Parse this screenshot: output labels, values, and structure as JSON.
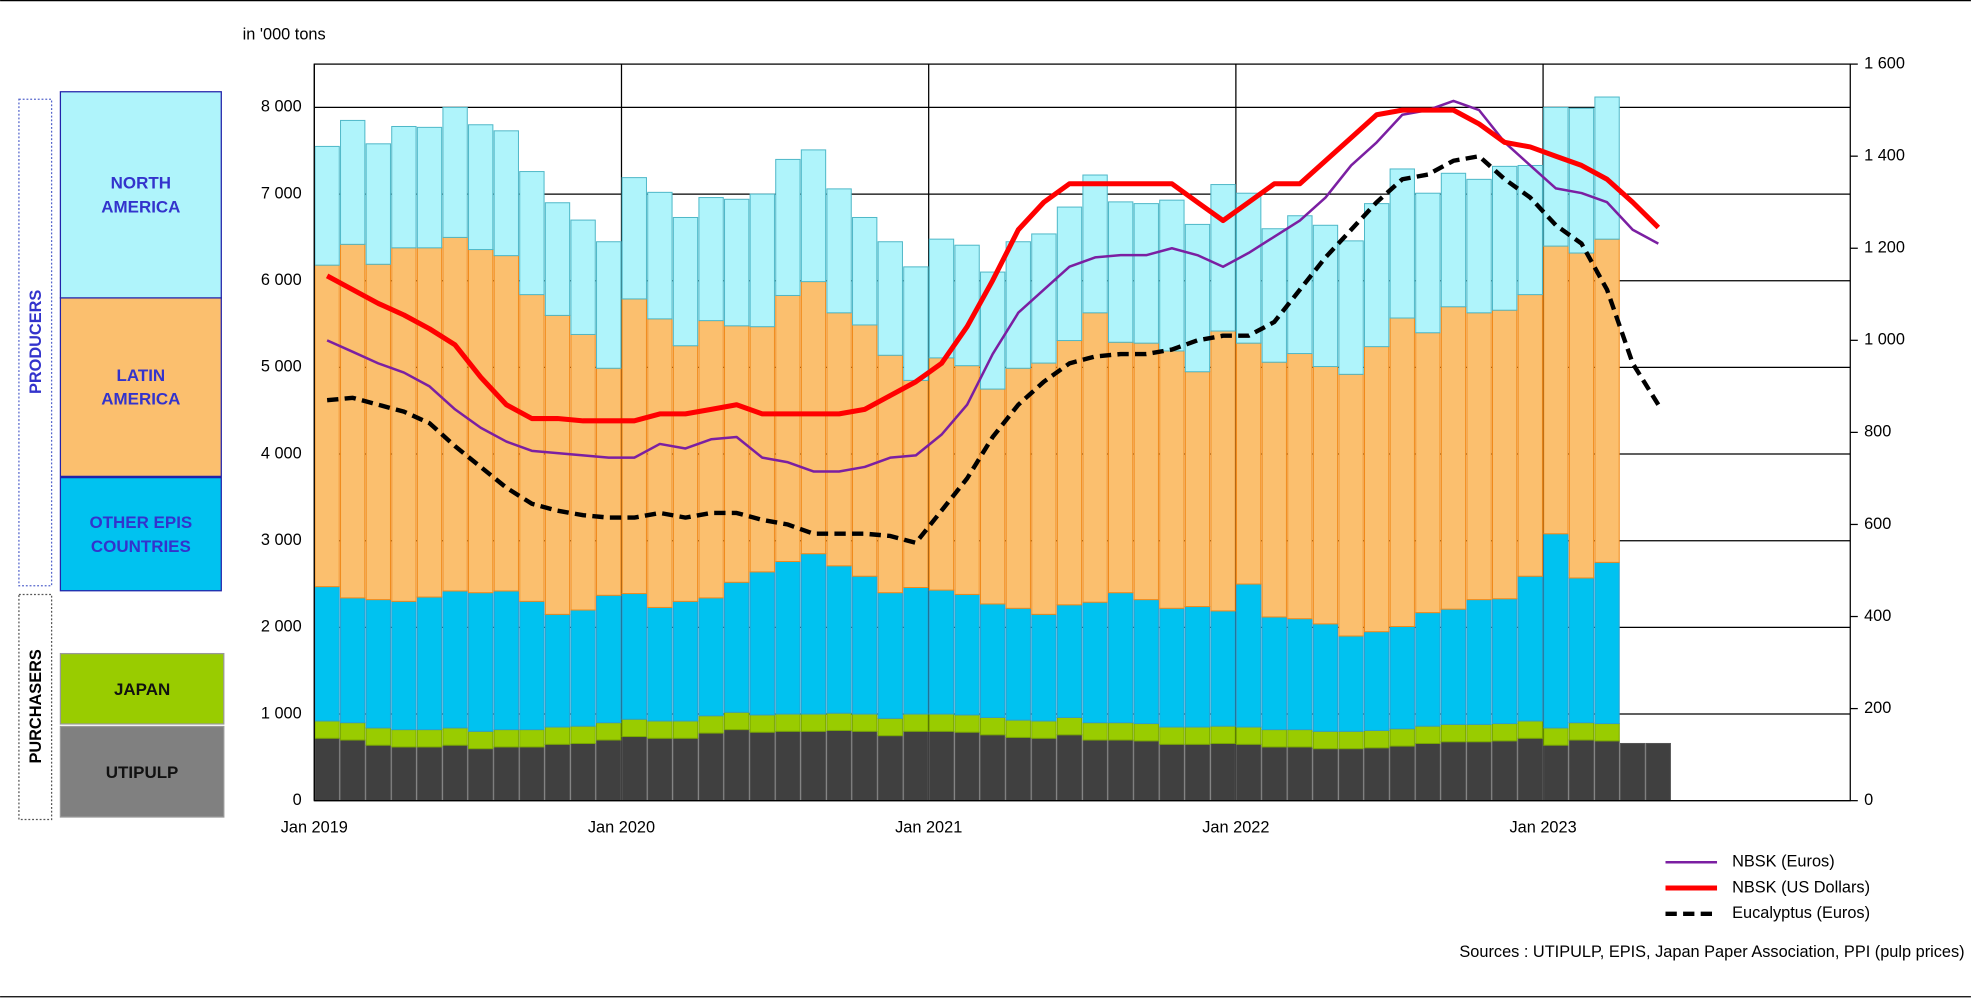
{
  "chart_data": {
    "type": "bar",
    "stacked": true,
    "y_label": "in '000 tons",
    "source": "Sources : UTIPULP, EPIS, Japan Paper Association, PPI (pulp prices)",
    "groups": [
      "PRODUCERS",
      "PURCHASERS"
    ],
    "categories": [
      "Jan 2019",
      null,
      null,
      null,
      null,
      null,
      null,
      null,
      null,
      null,
      null,
      null,
      "Jan 2020",
      null,
      null,
      null,
      null,
      null,
      null,
      null,
      null,
      null,
      null,
      null,
      "Jan 2021",
      null,
      null,
      null,
      null,
      null,
      null,
      null,
      null,
      null,
      null,
      null,
      "Jan 2022",
      null,
      null,
      null,
      null,
      null,
      null,
      null,
      null,
      null,
      null,
      null,
      "Jan 2023",
      null,
      null,
      null,
      null
    ],
    "ylim": [
      0,
      8500
    ],
    "yticks": [
      0,
      {
        "value": 1000,
        "label": "1 000"
      },
      {
        "value": 2000,
        "label": "2 000"
      },
      {
        "value": 3000,
        "label": "3 000"
      },
      {
        "value": 4000,
        "label": "4 000"
      },
      {
        "value": 5000,
        "label": "5 000"
      },
      {
        "value": 6000,
        "label": "6 000"
      },
      {
        "value": 7000,
        "label": "7 000"
      },
      {
        "value": 8000,
        "label": "8 000"
      }
    ],
    "y2lim": [
      0,
      1600
    ],
    "y2ticks": [
      0,
      200,
      400,
      600,
      800,
      {
        "value": 1000,
        "label": "1 000"
      },
      {
        "value": 1200,
        "label": "1 200"
      },
      {
        "value": 1400,
        "label": "1 400"
      },
      {
        "value": 1600,
        "label": "1 600"
      }
    ],
    "grid": true,
    "series": [
      {
        "name": "UTIPULP",
        "type": "bar",
        "color": "#404040",
        "values": [
          720,
          700,
          640,
          620,
          620,
          640,
          600,
          620,
          620,
          650,
          660,
          700,
          740,
          720,
          720,
          780,
          820,
          790,
          800,
          800,
          810,
          800,
          750,
          800,
          800,
          790,
          760,
          730,
          720,
          760,
          700,
          700,
          690,
          650,
          650,
          660,
          650,
          620,
          620,
          600,
          600,
          610,
          630,
          660,
          680,
          680,
          690,
          720,
          640,
          700,
          690,
          660,
          660
        ]
      },
      {
        "name": "JAPAN",
        "type": "bar",
        "color": "#99cc00",
        "values": [
          200,
          200,
          200,
          200,
          200,
          200,
          200,
          200,
          200,
          200,
          200,
          200,
          200,
          200,
          200,
          200,
          200,
          200,
          200,
          200,
          200,
          200,
          200,
          200,
          200,
          200,
          200,
          200,
          200,
          200,
          200,
          200,
          200,
          200,
          200,
          200,
          200,
          200,
          200,
          200,
          200,
          200,
          200,
          200,
          200,
          200,
          200,
          200,
          200,
          200,
          200,
          null,
          null
        ]
      },
      {
        "name": "OTHER EPIS COUNTRIES",
        "type": "bar",
        "color": "#00c2f0",
        "values": [
          1550,
          1440,
          1480,
          1480,
          1530,
          1580,
          1600,
          1600,
          1480,
          1300,
          1340,
          1470,
          1450,
          1310,
          1380,
          1360,
          1500,
          1650,
          1760,
          1850,
          1700,
          1590,
          1450,
          1460,
          1430,
          1390,
          1310,
          1290,
          1230,
          1300,
          1390,
          1500,
          1430,
          1370,
          1390,
          1330,
          1650,
          1300,
          1280,
          1240,
          1100,
          1140,
          1180,
          1310,
          1330,
          1440,
          1440,
          1670,
          2240,
          1670,
          1860,
          null,
          null
        ]
      },
      {
        "name": "LATIN AMERICA",
        "type": "bar",
        "color": "#fbbf6e",
        "values": [
          3710,
          4080,
          3870,
          4080,
          4030,
          4080,
          3960,
          3870,
          3540,
          3450,
          3180,
          2620,
          3400,
          3330,
          2950,
          3200,
          2960,
          2830,
          3070,
          3140,
          2920,
          2900,
          2740,
          2390,
          2680,
          2640,
          2480,
          2770,
          2900,
          3050,
          3340,
          2890,
          2960,
          2970,
          2710,
          3230,
          2780,
          2940,
          3060,
          2970,
          3020,
          3290,
          3560,
          3230,
          3490,
          3310,
          3330,
          3250,
          3320,
          3750,
          3730,
          null,
          null
        ]
      },
      {
        "name": "NORTH AMERICA",
        "type": "bar",
        "color": "#aff4fb",
        "values": [
          1370,
          1430,
          1390,
          1400,
          1390,
          1500,
          1440,
          1440,
          1420,
          1300,
          1320,
          1460,
          1400,
          1460,
          1480,
          1420,
          1460,
          1530,
          1570,
          1520,
          1430,
          1240,
          1310,
          1310,
          1370,
          1390,
          1350,
          1460,
          1490,
          1540,
          1590,
          1620,
          1610,
          1740,
          1700,
          1690,
          1730,
          1540,
          1590,
          1630,
          1540,
          1650,
          1720,
          1610,
          1540,
          1540,
          1660,
          1490,
          1600,
          1670,
          1640,
          null,
          null
        ]
      },
      {
        "name": "NBSK (Euros)",
        "type": "line",
        "axis": "y2",
        "color": "#7b1fa2",
        "width": 2,
        "values": [
          1000,
          975,
          950,
          930,
          900,
          850,
          810,
          780,
          760,
          755,
          750,
          745,
          745,
          775,
          765,
          785,
          790,
          745,
          735,
          715,
          715,
          725,
          745,
          750,
          795,
          860,
          970,
          1060,
          1110,
          1160,
          1180,
          1185,
          1185,
          1200,
          1185,
          1160,
          1190,
          1225,
          1260,
          1310,
          1380,
          1430,
          1490,
          1500,
          1520,
          1500,
          1430,
          1380,
          1330,
          1320,
          1300,
          1240,
          1210
        ]
      },
      {
        "name": "NBSK (US Dollars)",
        "type": "line",
        "axis": "y2",
        "color": "#ff0000",
        "width": 4,
        "values": [
          1140,
          1110,
          1080,
          1055,
          1025,
          990,
          920,
          860,
          830,
          830,
          825,
          825,
          825,
          840,
          840,
          850,
          860,
          840,
          840,
          840,
          840,
          850,
          880,
          910,
          950,
          1030,
          1130,
          1240,
          1300,
          1340,
          1340,
          1340,
          1340,
          1340,
          1300,
          1260,
          1300,
          1340,
          1340,
          1390,
          1440,
          1490,
          1500,
          1500,
          1500,
          1470,
          1430,
          1420,
          1400,
          1380,
          1350,
          1300,
          1245
        ]
      },
      {
        "name": "Eucalyptus (Euros)",
        "type": "line",
        "axis": "y2",
        "color": "#000000",
        "width": 3.5,
        "dashed": true,
        "values": [
          870,
          875,
          860,
          845,
          820,
          770,
          725,
          680,
          645,
          630,
          620,
          615,
          615,
          625,
          615,
          625,
          625,
          610,
          600,
          580,
          580,
          580,
          575,
          560,
          630,
          700,
          790,
          860,
          910,
          950,
          965,
          970,
          970,
          980,
          1000,
          1010,
          1010,
          1040,
          1110,
          1180,
          1240,
          1300,
          1350,
          1360,
          1390,
          1400,
          1350,
          1310,
          1250,
          1210,
          1110,
          950,
          860
        ]
      }
    ]
  }
}
